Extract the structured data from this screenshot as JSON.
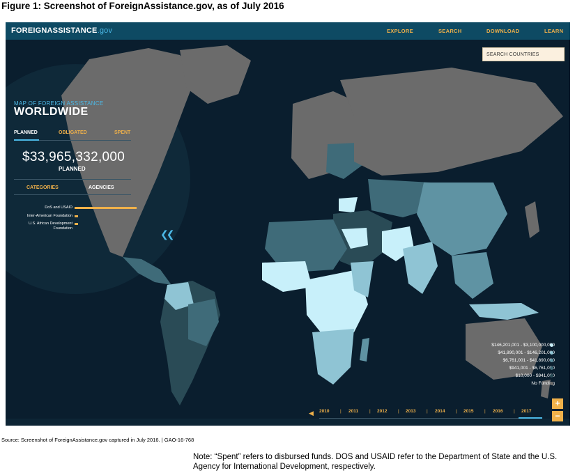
{
  "figure": {
    "title": "Figure 1: Screenshot of ForeignAssistance.gov, as of July 2016",
    "source": "Source: Screenshot of ForeignAssistance.gov captured in July 2016.  |  GAO-16-768",
    "note": "Note: “Spent” refers to disbursed funds. DOS and USAID refer to the Department of State and the U.S. Agency for International Development, respectively."
  },
  "site": {
    "brand_main": "FOREIGNASSISTANCE",
    "brand_domain": ".gov",
    "nav": [
      "EXPLORE",
      "SEARCH",
      "DOWNLOAD",
      "LEARN"
    ],
    "search_placeholder": "SEARCH COUNTRIES"
  },
  "panel": {
    "subtitle": "MAP OF FOREIGN ASSISTANCE",
    "title": "WORLDWIDE",
    "tabs": [
      {
        "label": "PLANNED",
        "active": true
      },
      {
        "label": "OBLIGATED",
        "active": false
      },
      {
        "label": "SPENT",
        "active": false
      }
    ],
    "amount": "$33,965,332,000",
    "amount_label": "PLANNED",
    "category_tabs": [
      {
        "label": "CATEGORIES",
        "active": false
      },
      {
        "label": "AGENCIES",
        "active": true
      }
    ],
    "agencies": [
      {
        "name": "DoS and USAID",
        "share": 0.985
      },
      {
        "name": "Inter-American Foundation",
        "share": 0.06
      },
      {
        "name": "U.S. African Development Foundation",
        "share": 0.06
      }
    ]
  },
  "legend": [
    {
      "label": "$146,201,001 - $3,100,000,000",
      "color": "#c8f0fa"
    },
    {
      "label": "$41,890,001 - $146,201,000",
      "color": "#8fc4d4"
    },
    {
      "label": "$6,761,001 - $41,890,000",
      "color": "#5f93a3"
    },
    {
      "label": "$941,001 - $6,761,000",
      "color": "#3f6b79"
    },
    {
      "label": "$10,000 - $941,000",
      "color": "#2a4b56"
    },
    {
      "label": "No Funding",
      "color": "#6b6b6b"
    }
  ],
  "timeline": {
    "years": [
      "2010",
      "2011",
      "2012",
      "2013",
      "2014",
      "2015",
      "2016",
      "2017"
    ],
    "selected": "2017",
    "prev_icon": "triangle-left-icon"
  },
  "zoom": {
    "in": "+",
    "out": "−"
  },
  "colors": {
    "accent": "#f0b14a",
    "highlight": "#4cb8e6",
    "ocean": "#0a1e2e",
    "header": "#0e4a63",
    "no_funding": "#6b6b6b"
  }
}
